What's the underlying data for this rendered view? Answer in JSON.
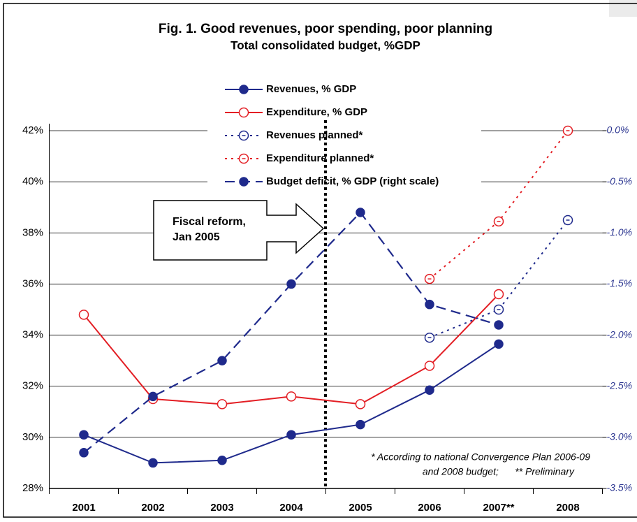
{
  "chart_data": {
    "type": "line",
    "title": "Fig. 1. Good revenues, poor spending, poor planning",
    "subtitle": "Total consolidated budget, %GDP",
    "categories": [
      "2001",
      "2002",
      "2003",
      "2004",
      "2005",
      "2006",
      "2007**",
      "2008"
    ],
    "series": [
      {
        "name": "Revenues, % GDP",
        "color": "#1f2a8c",
        "line": "solid",
        "marker": "filled",
        "values": [
          30.1,
          29.0,
          29.1,
          30.1,
          30.5,
          31.85,
          33.65,
          null
        ]
      },
      {
        "name": "Expenditure, % GDP",
        "color": "#e31e24",
        "line": "solid",
        "marker": "open",
        "values": [
          34.8,
          31.5,
          31.3,
          31.6,
          31.3,
          32.8,
          35.6,
          null
        ]
      },
      {
        "name": "Revenues planned*",
        "color": "#1f2a8c",
        "line": "dotted",
        "marker": "open",
        "values": [
          null,
          null,
          null,
          null,
          null,
          33.9,
          35.0,
          38.5
        ]
      },
      {
        "name": "Expenditure planned*",
        "color": "#e31e24",
        "line": "dotted",
        "marker": "open",
        "values": [
          null,
          null,
          null,
          null,
          null,
          36.2,
          38.45,
          42.0
        ]
      },
      {
        "name": "Budget deficit, % GDP (right scale)",
        "color": "#1f2a8c",
        "line": "dashed",
        "marker": "filled",
        "axis": "y2",
        "values": [
          -3.15,
          -2.6,
          -2.25,
          -1.5,
          -0.8,
          -1.7,
          -1.9,
          null
        ]
      }
    ],
    "ylim": [
      28,
      42
    ],
    "yticks": [
      {
        "value": 28,
        "label": "28%"
      },
      {
        "value": 30,
        "label": "30%"
      },
      {
        "value": 32,
        "label": "32%"
      },
      {
        "value": 34,
        "label": "34%"
      },
      {
        "value": 36,
        "label": "36%"
      },
      {
        "value": 38,
        "label": "38%"
      },
      {
        "value": 40,
        "label": "40%"
      },
      {
        "value": 42,
        "label": "42%"
      }
    ],
    "y2lim": [
      -3.5,
      0
    ],
    "y2ticks": [
      {
        "value": -3.5,
        "label": "-3.5%"
      },
      {
        "value": -3.0,
        "label": "-3.0%"
      },
      {
        "value": -2.5,
        "label": "-2.5%"
      },
      {
        "value": -2.0,
        "label": "-2.0%"
      },
      {
        "value": -1.5,
        "label": "-1.5%"
      },
      {
        "value": -1.0,
        "label": "-1.0%"
      },
      {
        "value": -0.5,
        "label": "-0.5%"
      },
      {
        "value": 0.0,
        "label": "0.0%"
      }
    ],
    "grid": true,
    "legend": "top",
    "annotation": [
      "Fiscal reform,",
      "Jan 2005"
    ],
    "footnote": [
      "* According to national Convergence Plan 2006-09",
      "and 2008 budget;      ** Preliminary"
    ]
  }
}
